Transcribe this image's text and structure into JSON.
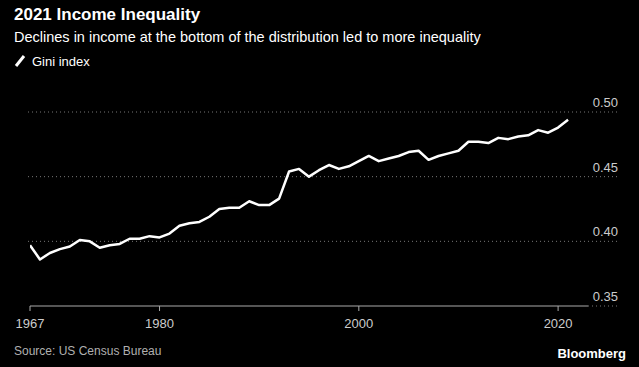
{
  "chart_data": {
    "type": "line",
    "title": "2021 Income Inequality",
    "subtitle": "Declines in income at the bottom of the distribution led to more inequality",
    "source": "Source: US Census Bureau",
    "brand": "Bloomberg",
    "x": [
      1967,
      1968,
      1969,
      1970,
      1971,
      1972,
      1973,
      1974,
      1975,
      1976,
      1977,
      1978,
      1979,
      1980,
      1981,
      1982,
      1983,
      1984,
      1985,
      1986,
      1987,
      1988,
      1989,
      1990,
      1991,
      1992,
      1993,
      1994,
      1995,
      1996,
      1997,
      1998,
      1999,
      2000,
      2001,
      2002,
      2003,
      2004,
      2005,
      2006,
      2007,
      2008,
      2009,
      2010,
      2011,
      2012,
      2013,
      2014,
      2015,
      2016,
      2017,
      2018,
      2019,
      2020,
      2021
    ],
    "series": [
      {
        "name": "Gini index",
        "color": "#ffffff",
        "values": [
          0.397,
          0.386,
          0.391,
          0.394,
          0.396,
          0.401,
          0.4,
          0.395,
          0.397,
          0.398,
          0.402,
          0.402,
          0.404,
          0.403,
          0.406,
          0.412,
          0.414,
          0.415,
          0.419,
          0.425,
          0.426,
          0.426,
          0.431,
          0.428,
          0.428,
          0.433,
          0.454,
          0.456,
          0.45,
          0.455,
          0.459,
          0.456,
          0.458,
          0.462,
          0.466,
          0.462,
          0.464,
          0.466,
          0.469,
          0.47,
          0.463,
          0.466,
          0.468,
          0.47,
          0.477,
          0.477,
          0.476,
          0.48,
          0.479,
          0.481,
          0.482,
          0.486,
          0.484,
          0.488,
          0.494
        ]
      }
    ],
    "xlim": [
      1967,
      2023
    ],
    "xticks": [
      1967,
      1980,
      2000,
      2020
    ],
    "ylim": [
      0.35,
      0.5
    ],
    "yticks": [
      0.35,
      {
        "value": 0.4,
        "label": "0.40"
      },
      0.45,
      {
        "value": 0.5,
        "label": "0.50"
      }
    ],
    "grid": true,
    "legend": "top-left"
  }
}
